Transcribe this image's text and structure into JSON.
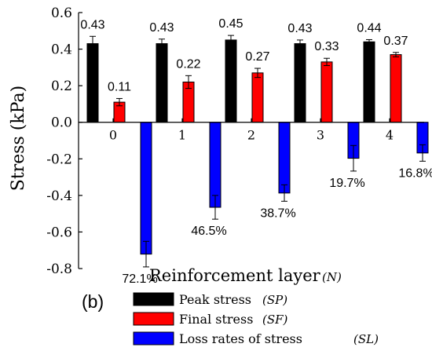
{
  "panel_label": "(b)",
  "chart_data": {
    "type": "bar",
    "xlabel": "Reinforcement layer",
    "xlabel_symbol": "(N)",
    "ylabel": "Stress (kPa)",
    "ylim": [
      -0.8,
      0.6
    ],
    "yticks": [
      "0.6",
      "0.4",
      "0.2",
      "0.0",
      "-0.2",
      "-0.4",
      "-0.6",
      "-0.8"
    ],
    "ytick_values": [
      0.6,
      0.4,
      0.2,
      0.0,
      -0.2,
      -0.4,
      -0.6,
      -0.8
    ],
    "categories": [
      "0",
      "1",
      "2",
      "3",
      "4"
    ],
    "legend_position": "bottom",
    "grid": false,
    "series": [
      {
        "name": "Peak stress",
        "symbol": "(SP)",
        "color": "#000000",
        "values": [
          0.43,
          0.43,
          0.45,
          0.43,
          0.44
        ],
        "errors": [
          0.04,
          0.025,
          0.025,
          0.02,
          0.012
        ],
        "labels": [
          "0.43",
          "0.43",
          "0.45",
          "0.43",
          "0.44"
        ]
      },
      {
        "name": "Final stress",
        "symbol": "(SF)",
        "color": "#ff0000",
        "values": [
          0.11,
          0.22,
          0.27,
          0.33,
          0.37
        ],
        "errors": [
          0.02,
          0.035,
          0.025,
          0.02,
          0.012
        ],
        "labels": [
          "0.11",
          "0.22",
          "0.27",
          "0.33",
          "0.37"
        ]
      },
      {
        "name": "Loss rates of stress",
        "symbol": "(SL)",
        "color": "#0000ff",
        "values": [
          -0.721,
          -0.465,
          -0.387,
          -0.197,
          -0.168
        ],
        "errors": [
          0.07,
          0.065,
          0.045,
          0.07,
          0.045
        ],
        "labels": [
          "72.1%",
          "46.5%",
          "38.7%",
          "19.7%",
          "16.8%"
        ]
      }
    ]
  }
}
